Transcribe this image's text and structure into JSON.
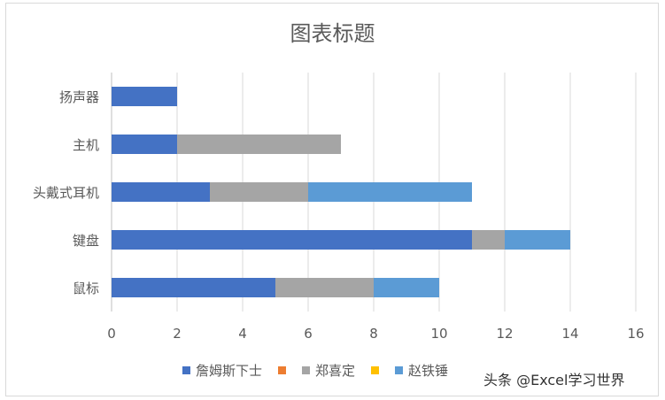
{
  "chart_data": {
    "type": "bar",
    "orientation": "horizontal",
    "stacked": true,
    "title": "图表标题",
    "categories": [
      "扬声器",
      "主机",
      "头戴式耳机",
      "键盘",
      "鼠标"
    ],
    "series": [
      {
        "name": "詹姆斯下士",
        "color": "#4472C4",
        "values": [
          2,
          2,
          3,
          11,
          5
        ]
      },
      {
        "name": "",
        "color": "#ED7D31",
        "values": [
          0,
          0,
          0,
          0,
          0
        ]
      },
      {
        "name": "郑喜定",
        "color": "#A5A5A5",
        "values": [
          0,
          5,
          3,
          1,
          3
        ]
      },
      {
        "name": "",
        "color": "#FFC000",
        "values": [
          0,
          0,
          0,
          0,
          0
        ]
      },
      {
        "name": "赵铁锤",
        "color": "#5B9BD5",
        "values": [
          0,
          0,
          5,
          2,
          2
        ]
      }
    ],
    "xlim": [
      0,
      16
    ],
    "xticks": [
      0,
      2,
      4,
      6,
      8,
      10,
      12,
      14,
      16
    ],
    "grid": true,
    "legend_position": "bottom"
  },
  "watermark": "头条 @Excel学习世界"
}
